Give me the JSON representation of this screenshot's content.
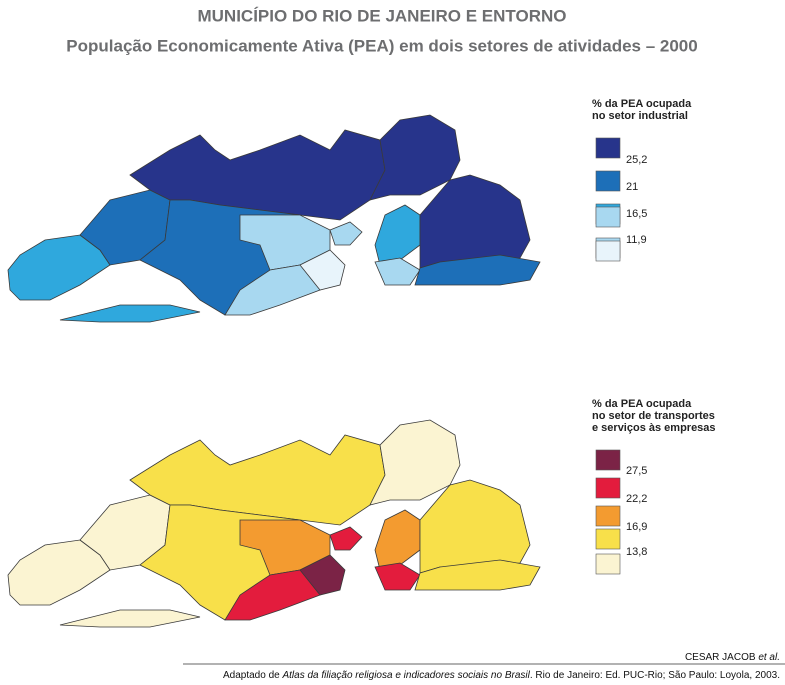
{
  "header": {
    "title": "MUNICÍPIO DO RIO DE JANEIRO E ENTORNO",
    "subtitle": "População Economicamente Ativa (PEA) em dois setores de atividades – 2000"
  },
  "maps": [
    {
      "legend": {
        "title_lines": [
          "% da PEA ocupada",
          "no setor industrial"
        ],
        "labels": [
          "25,2",
          "21",
          "16,5",
          "11,9"
        ]
      }
    },
    {
      "legend": {
        "title_lines": [
          "% da PEA ocupada",
          "no setor de transportes",
          "e serviços às empresas"
        ],
        "labels": [
          "27,5",
          "22,2",
          "16,9",
          "13,8"
        ]
      }
    }
  ],
  "footer": {
    "credit": {
      "text": "CESAR JACOB ",
      "italic": "et al."
    },
    "source": {
      "before": "Adaptado de ",
      "italic": "Atlas da filiação religiosa e indicadores sociais no Brasil",
      "after": ". Rio de Janeiro: Ed. PUC-Rio; São Paulo: Loyola, 2003."
    }
  }
}
